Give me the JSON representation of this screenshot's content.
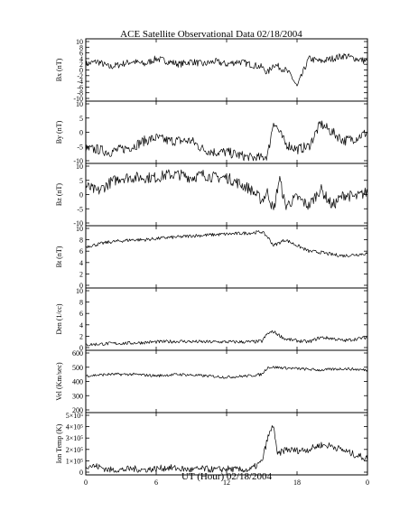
{
  "figure": {
    "title": "ACE Satellite Observational Data   02/18/2004",
    "xlabel": "UT (Hour)   02/18/2004",
    "xticks": [
      "0",
      "6",
      "12",
      "18",
      "0"
    ]
  },
  "chart_data": [
    {
      "type": "line",
      "name": "Bx",
      "ylabel": "Bx (nT)",
      "ylim": [
        -10,
        10
      ],
      "yticks": [
        -10,
        -8,
        -6,
        -4,
        -2,
        0,
        2,
        4,
        6,
        8,
        10
      ],
      "log": false,
      "x": [
        0,
        1,
        2,
        3,
        4,
        5,
        6,
        7,
        8,
        9,
        10,
        11,
        12,
        13,
        14,
        15,
        15.5,
        16,
        17,
        17.5,
        18,
        19,
        20,
        21,
        22,
        23,
        24
      ],
      "y": [
        2,
        3,
        1,
        2,
        3,
        2,
        4,
        3,
        2,
        3,
        2,
        3,
        2,
        3,
        2,
        1,
        -1,
        2,
        0,
        -2,
        -6,
        4,
        3,
        4,
        5,
        4,
        3
      ],
      "noise": 1.2
    },
    {
      "type": "line",
      "name": "By",
      "ylabel": "By (nT)",
      "ylim": [
        -10,
        10
      ],
      "yticks": [
        -10,
        -5,
        0,
        5,
        10
      ],
      "log": false,
      "x": [
        0,
        1,
        2,
        3,
        4,
        5,
        6,
        7,
        8,
        9,
        10,
        11,
        12,
        13,
        14,
        15,
        15.5,
        16,
        16.5,
        17,
        18,
        19,
        20,
        21,
        22,
        23,
        24
      ],
      "y": [
        -6,
        -6,
        -7,
        -6,
        -5,
        -3,
        -2,
        -3,
        -3,
        -3,
        -6,
        -7,
        -7,
        -8,
        -9,
        -9,
        -8,
        4,
        0,
        -4,
        -6,
        -5,
        3,
        0,
        -3,
        -2,
        0
      ],
      "noise": 1.8
    },
    {
      "type": "line",
      "name": "Bz",
      "ylabel": "Bz (nT)",
      "ylim": [
        -10,
        10
      ],
      "yticks": [
        -10,
        -5,
        0,
        5,
        10
      ],
      "log": false,
      "x": [
        0,
        1,
        2,
        3,
        4,
        5,
        6,
        7,
        8,
        9,
        10,
        11,
        12,
        13,
        14,
        15,
        15.5,
        16,
        16.5,
        17,
        18,
        19,
        20,
        21,
        22,
        23,
        24
      ],
      "y": [
        3,
        1,
        4,
        6,
        6,
        6,
        6,
        7,
        7,
        6,
        7,
        6,
        6,
        4,
        2,
        -2,
        1,
        -6,
        6,
        -4,
        -1,
        -4,
        2,
        -4,
        0,
        -1,
        1
      ],
      "noise": 2
    },
    {
      "type": "line",
      "name": "Bt",
      "ylabel": "Bt (nT)",
      "ylim": [
        0,
        10
      ],
      "yticks": [
        0,
        2,
        4,
        6,
        8,
        10
      ],
      "log": false,
      "x": [
        0,
        1,
        2,
        3,
        4,
        5,
        6,
        7,
        8,
        9,
        10,
        11,
        12,
        13,
        14,
        15,
        15.5,
        16,
        17,
        18,
        19,
        20,
        21,
        22,
        23,
        24
      ],
      "y": [
        6.8,
        7.2,
        7.6,
        7.8,
        8,
        8,
        8.2,
        8.4,
        8.5,
        8.7,
        8.8,
        8.9,
        9,
        9.1,
        9.2,
        9.4,
        8.5,
        7,
        8,
        7,
        6,
        5.8,
        5.4,
        5.2,
        5.4,
        5.6
      ],
      "noise": 0.3
    },
    {
      "type": "line",
      "name": "Den",
      "ylabel": "Den (1/cc)",
      "ylim": [
        0,
        10
      ],
      "yticks": [
        0,
        2,
        4,
        6,
        8,
        10
      ],
      "log": false,
      "x": [
        0,
        2,
        4,
        6,
        8,
        10,
        12,
        14,
        15,
        15.5,
        16,
        17,
        18,
        19,
        20,
        21,
        22,
        23,
        24
      ],
      "y": [
        0.5,
        0.7,
        0.8,
        1,
        1.1,
        1,
        1,
        1,
        1.1,
        2.5,
        2.8,
        1.5,
        1.2,
        1,
        1.8,
        1.6,
        1.2,
        1.5,
        1.8
      ],
      "noise": 0.3
    },
    {
      "type": "line",
      "name": "Vel",
      "ylabel": "Vel (Km/sec)",
      "ylim": [
        200,
        600
      ],
      "yticks": [
        200,
        300,
        400,
        500,
        600
      ],
      "log": false,
      "x": [
        0,
        2,
        4,
        6,
        8,
        10,
        12,
        14,
        15,
        15.5,
        16,
        18,
        20,
        22,
        24
      ],
      "y": [
        440,
        450,
        450,
        440,
        450,
        440,
        430,
        440,
        450,
        500,
        500,
        490,
        480,
        490,
        480
      ],
      "noise": 10
    },
    {
      "type": "line",
      "name": "Ion Temp",
      "ylabel": "Ion Temp (K)",
      "ylim": [
        0,
        500000
      ],
      "yticks": [
        "0",
        "1×10⁵",
        "2×10⁵",
        "3×10⁵",
        "4×10⁵",
        "5×10⁵"
      ],
      "ytick_values": [
        0,
        100000,
        200000,
        300000,
        400000,
        500000
      ],
      "log": false,
      "x": [
        0,
        1,
        2,
        3,
        4,
        5,
        6,
        7,
        8,
        9,
        10,
        11,
        12,
        13,
        14,
        15,
        15.5,
        16,
        16.3,
        17,
        18,
        19,
        20,
        21,
        22,
        23,
        24
      ],
      "y": [
        60000,
        50000,
        20000,
        20000,
        30000,
        20000,
        30000,
        40000,
        30000,
        20000,
        30000,
        20000,
        30000,
        20000,
        20000,
        90000,
        300000,
        420000,
        150000,
        200000,
        190000,
        200000,
        240000,
        230000,
        190000,
        150000,
        120000
      ],
      "noise": 30000
    }
  ]
}
